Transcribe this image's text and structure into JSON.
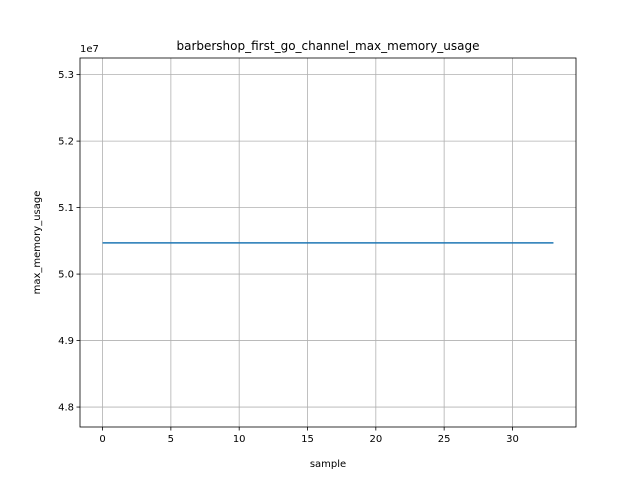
{
  "chart_data": {
    "type": "line",
    "title": "barbershop_first_go_channel_max_memory_usage",
    "xlabel": "sample",
    "ylabel": "max_memory_usage",
    "y_offset_label": "1e7",
    "xlim": [
      -1.65,
      34.65
    ],
    "ylim": [
      4.77,
      5.325
    ],
    "xticks": [
      0,
      5,
      10,
      15,
      20,
      25,
      30
    ],
    "yticks": [
      4.8,
      4.9,
      5.0,
      5.1,
      5.2,
      5.3
    ],
    "ytick_labels": [
      "4.8",
      "4.9",
      "5.0",
      "5.1",
      "5.2",
      "5.3"
    ],
    "grid": true,
    "series": [
      {
        "color": "#1f77b4",
        "x": [
          0,
          33
        ],
        "y": [
          5.047,
          5.047
        ]
      }
    ]
  }
}
